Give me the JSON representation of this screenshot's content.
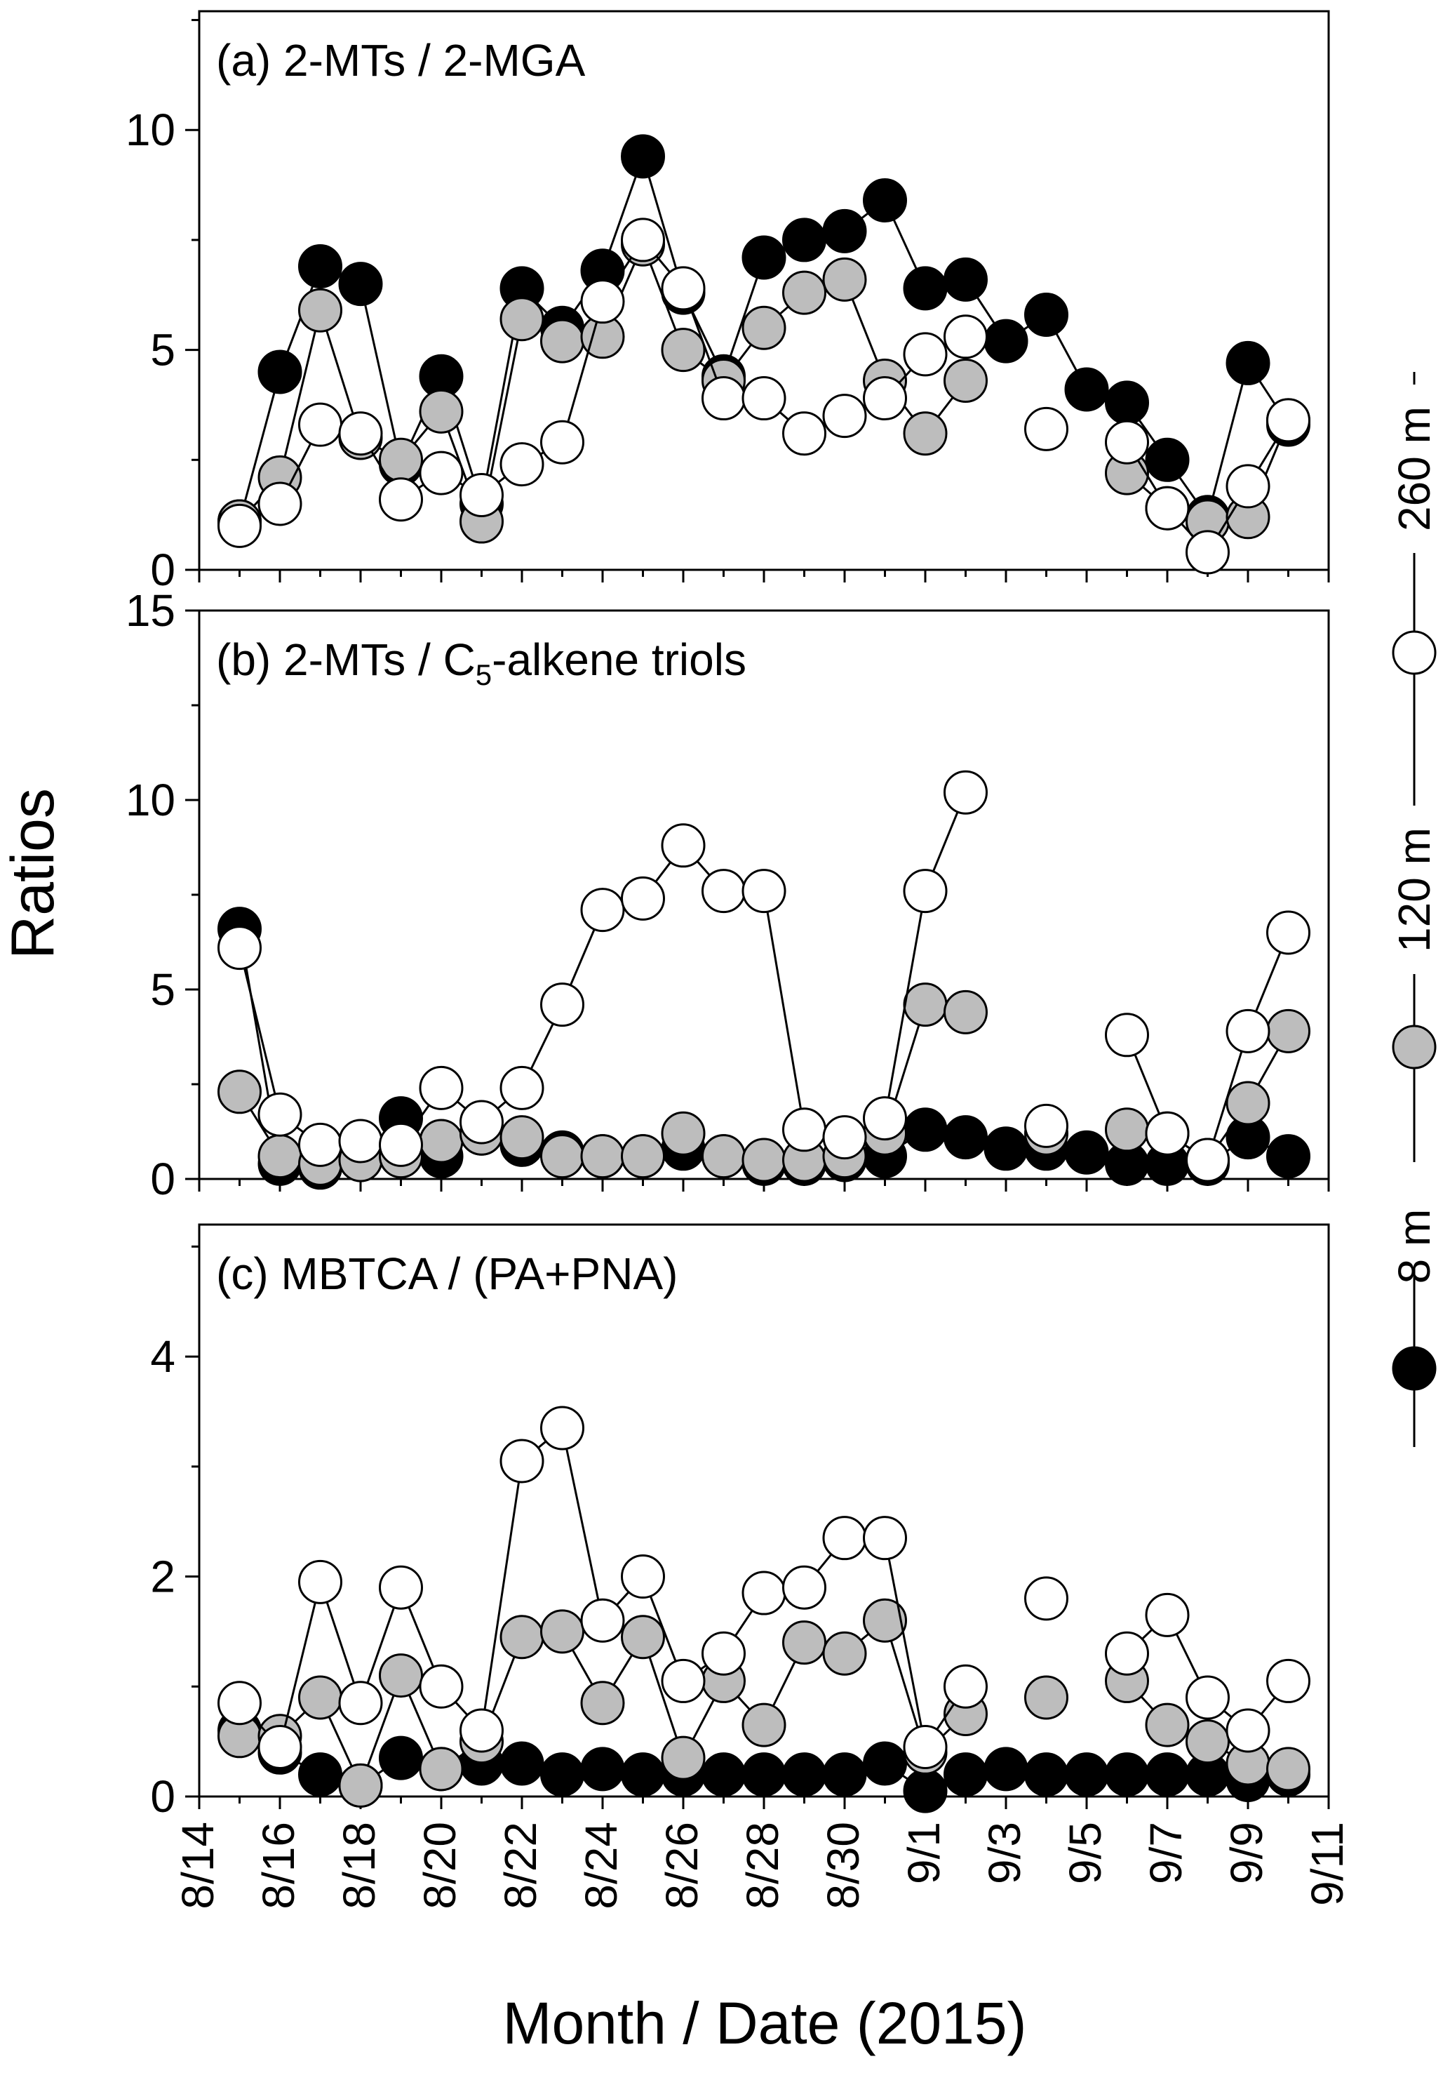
{
  "colors": {
    "8 m": "#000000",
    "120 m": "#bdbdbd",
    "260 m": "#ffffff",
    "stroke": "#000000"
  },
  "figure": {
    "ylabel": "Ratios",
    "xlabel": "Month / Date (2015)",
    "legend": {
      "labels": [
        "8 m",
        "120 m",
        "260 m"
      ],
      "placement": "right, vertical"
    }
  },
  "chart_data": [
    {
      "type": "scatter",
      "panel": "a",
      "title": "(a) 2-MTs / 2-MGA",
      "x_type": "date",
      "xlim": [
        "2015-08-14",
        "2015-09-11"
      ],
      "ylim": [
        0,
        12.7
      ],
      "yticks": [
        0,
        5,
        10
      ],
      "series": [
        {
          "name": "8 m",
          "x": [
            "2015-08-15",
            "2015-08-16",
            "2015-08-17",
            "2015-08-18",
            "2015-08-19",
            "2015-08-20",
            "2015-08-21",
            "2015-08-22",
            "2015-08-23",
            "2015-08-24",
            "2015-08-25",
            "2015-08-26",
            "2015-08-27",
            "2015-08-28",
            "2015-08-29",
            "2015-08-30",
            "2015-08-31",
            "2015-09-01",
            "2015-09-02",
            "2015-09-03",
            "2015-09-04",
            "2015-09-05",
            "2015-09-06",
            "2015-09-07",
            "2015-09-08",
            "2015-09-09",
            "2015-09-10"
          ],
          "y": [
            1.1,
            4.5,
            6.9,
            6.5,
            2.4,
            4.4,
            1.5,
            6.4,
            5.5,
            6.8,
            9.4,
            6.3,
            4.4,
            7.1,
            7.5,
            7.7,
            8.4,
            6.4,
            6.6,
            5.2,
            5.8,
            4.1,
            3.8,
            2.5,
            1.2,
            4.7,
            3.3
          ]
        },
        {
          "name": "120 m",
          "x": [
            "2015-08-15",
            "2015-08-16",
            "2015-08-17",
            "2015-08-18",
            "2015-08-19",
            "2015-08-20",
            "2015-08-21",
            "2015-08-22",
            "2015-08-23",
            "2015-08-24",
            "2015-08-25",
            "2015-08-26",
            "2015-08-27",
            "2015-08-28",
            "2015-08-29",
            "2015-08-30",
            "2015-08-31",
            "2015-09-01",
            "2015-09-02",
            "2015-09-06",
            "2015-09-07",
            "2015-09-08",
            "2015-09-09",
            "2015-09-10"
          ],
          "y": [
            1.1,
            2.1,
            5.9,
            3.0,
            2.5,
            3.6,
            1.1,
            5.7,
            5.2,
            5.3,
            7.4,
            5.0,
            4.3,
            5.5,
            6.3,
            6.6,
            4.3,
            3.1,
            4.3,
            2.2,
            1.4,
            1.1,
            1.2,
            3.4
          ]
        },
        {
          "name": "260 m",
          "x": [
            "2015-08-15",
            "2015-08-16",
            "2015-08-17",
            "2015-08-18",
            "2015-08-19",
            "2015-08-20",
            "2015-08-21",
            "2015-08-22",
            "2015-08-23",
            "2015-08-24",
            "2015-08-25",
            "2015-08-26",
            "2015-08-27",
            "2015-08-28",
            "2015-08-29",
            "2015-08-30",
            "2015-08-31",
            "2015-09-01",
            "2015-09-02",
            "2015-09-04",
            "2015-09-06",
            "2015-09-07",
            "2015-09-08",
            "2015-09-09",
            "2015-09-10"
          ],
          "y": [
            1.0,
            1.5,
            3.3,
            3.1,
            1.6,
            2.2,
            1.7,
            2.4,
            2.9,
            6.1,
            7.5,
            6.4,
            3.9,
            3.9,
            3.1,
            3.5,
            3.9,
            4.9,
            5.3,
            3.2,
            2.9,
            1.4,
            0.4,
            1.9,
            3.4
          ]
        }
      ]
    },
    {
      "type": "scatter",
      "panel": "b",
      "title": "(b) 2-MTs / C",
      "title_sub": "5",
      "title_tail": "-alkene triols",
      "x_type": "date",
      "xlim": [
        "2015-08-14",
        "2015-09-11"
      ],
      "ylim": [
        0,
        15
      ],
      "yticks": [
        0,
        5,
        10,
        15
      ],
      "series": [
        {
          "name": "8 m",
          "x": [
            "2015-08-15",
            "2015-08-16",
            "2015-08-17",
            "2015-08-18",
            "2015-08-19",
            "2015-08-20",
            "2015-08-21",
            "2015-08-22",
            "2015-08-23",
            "2015-08-24",
            "2015-08-25",
            "2015-08-26",
            "2015-08-27",
            "2015-08-28",
            "2015-08-29",
            "2015-08-30",
            "2015-08-31",
            "2015-09-01",
            "2015-09-02",
            "2015-09-03",
            "2015-09-04",
            "2015-09-05",
            "2015-09-06",
            "2015-09-07",
            "2015-09-08",
            "2015-09-09",
            "2015-09-10"
          ],
          "y": [
            6.6,
            0.4,
            0.3,
            0.5,
            1.6,
            0.6,
            1.2,
            0.9,
            0.7,
            0.6,
            0.6,
            0.8,
            0.6,
            0.4,
            0.4,
            0.5,
            0.6,
            1.3,
            1.1,
            0.8,
            0.8,
            0.7,
            0.4,
            0.4,
            0.4,
            1.1,
            0.6
          ]
        },
        {
          "name": "120 m",
          "x": [
            "2015-08-15",
            "2015-08-16",
            "2015-08-17",
            "2015-08-18",
            "2015-08-19",
            "2015-08-20",
            "2015-08-21",
            "2015-08-22",
            "2015-08-23",
            "2015-08-24",
            "2015-08-25",
            "2015-08-26",
            "2015-08-27",
            "2015-08-28",
            "2015-08-29",
            "2015-08-30",
            "2015-08-31",
            "2015-09-01",
            "2015-09-02",
            "2015-09-04",
            "2015-09-06",
            "2015-09-07",
            "2015-09-08",
            "2015-09-09",
            "2015-09-10"
          ],
          "y": [
            2.3,
            0.6,
            0.4,
            0.5,
            0.6,
            1.0,
            1.2,
            1.1,
            0.6,
            0.6,
            0.6,
            1.2,
            0.6,
            0.5,
            0.5,
            0.6,
            1.2,
            4.6,
            4.4,
            1.2,
            1.3,
            1.2,
            0.5,
            2.0,
            3.9
          ]
        },
        {
          "name": "260 m",
          "x": [
            "2015-08-15",
            "2015-08-16",
            "2015-08-17",
            "2015-08-18",
            "2015-08-19",
            "2015-08-20",
            "2015-08-21",
            "2015-08-22",
            "2015-08-23",
            "2015-08-24",
            "2015-08-25",
            "2015-08-26",
            "2015-08-27",
            "2015-08-28",
            "2015-08-29",
            "2015-08-30",
            "2015-08-31",
            "2015-09-01",
            "2015-09-02",
            "2015-09-04",
            "2015-09-06",
            "2015-09-07",
            "2015-09-08",
            "2015-09-09",
            "2015-09-10"
          ],
          "y": [
            6.1,
            1.7,
            0.9,
            1.0,
            0.9,
            2.4,
            1.5,
            2.4,
            4.6,
            7.1,
            7.4,
            8.8,
            7.6,
            7.6,
            1.3,
            1.1,
            1.6,
            7.6,
            10.2,
            1.4,
            3.8,
            1.2,
            0.5,
            3.9,
            6.5
          ]
        }
      ]
    },
    {
      "type": "scatter",
      "panel": "c",
      "title": "(c) MBTCA / (PA+PNA)",
      "x_type": "date",
      "xlim": [
        "2015-08-14",
        "2015-09-11"
      ],
      "ylim": [
        0,
        5.2
      ],
      "yticks": [
        0,
        2,
        4
      ],
      "xtick_labels": [
        "8/14",
        "8/16",
        "8/18",
        "8/20",
        "8/22",
        "8/24",
        "8/26",
        "8/28",
        "8/30",
        "9/1",
        "9/3",
        "9/5",
        "9/7",
        "9/9",
        "9/11"
      ],
      "series": [
        {
          "name": "8 m",
          "x": [
            "2015-08-15",
            "2015-08-16",
            "2015-08-17",
            "2015-08-18",
            "2015-08-19",
            "2015-08-20",
            "2015-08-21",
            "2015-08-22",
            "2015-08-23",
            "2015-08-24",
            "2015-08-25",
            "2015-08-26",
            "2015-08-27",
            "2015-08-28",
            "2015-08-29",
            "2015-08-30",
            "2015-08-31",
            "2015-09-01",
            "2015-09-02",
            "2015-09-03",
            "2015-09-04",
            "2015-09-05",
            "2015-09-06",
            "2015-09-07",
            "2015-09-08",
            "2015-09-09",
            "2015-09-10"
          ],
          "y": [
            0.6,
            0.4,
            0.2,
            0.1,
            0.35,
            0.25,
            0.3,
            0.3,
            0.2,
            0.25,
            0.2,
            0.2,
            0.2,
            0.2,
            0.2,
            0.2,
            0.3,
            0.05,
            0.2,
            0.25,
            0.2,
            0.2,
            0.2,
            0.2,
            0.2,
            0.15,
            0.2
          ]
        },
        {
          "name": "120 m",
          "x": [
            "2015-08-15",
            "2015-08-16",
            "2015-08-17",
            "2015-08-18",
            "2015-08-19",
            "2015-08-20",
            "2015-08-21",
            "2015-08-22",
            "2015-08-23",
            "2015-08-24",
            "2015-08-25",
            "2015-08-26",
            "2015-08-27",
            "2015-08-28",
            "2015-08-29",
            "2015-08-30",
            "2015-08-31",
            "2015-09-01",
            "2015-09-02",
            "2015-09-04",
            "2015-09-06",
            "2015-09-07",
            "2015-09-08",
            "2015-09-09",
            "2015-09-10"
          ],
          "y": [
            0.55,
            0.55,
            0.9,
            0.1,
            1.1,
            0.25,
            0.5,
            1.45,
            1.5,
            0.85,
            1.45,
            0.35,
            1.05,
            0.65,
            1.4,
            1.3,
            1.6,
            0.4,
            0.75,
            0.9,
            1.05,
            0.65,
            0.5,
            0.3,
            0.25
          ]
        },
        {
          "name": "260 m",
          "x": [
            "2015-08-15",
            "2015-08-16",
            "2015-08-17",
            "2015-08-18",
            "2015-08-19",
            "2015-08-20",
            "2015-08-21",
            "2015-08-22",
            "2015-08-23",
            "2015-08-24",
            "2015-08-25",
            "2015-08-26",
            "2015-08-27",
            "2015-08-28",
            "2015-08-29",
            "2015-08-30",
            "2015-08-31",
            "2015-09-01",
            "2015-09-02",
            "2015-09-04",
            "2015-09-06",
            "2015-09-07",
            "2015-09-08",
            "2015-09-09",
            "2015-09-10"
          ],
          "y": [
            0.85,
            0.45,
            1.95,
            0.85,
            1.9,
            1.0,
            0.6,
            3.05,
            3.35,
            1.6,
            2.0,
            1.05,
            1.3,
            1.85,
            1.9,
            2.35,
            2.35,
            0.45,
            1.0,
            1.8,
            1.3,
            1.65,
            0.9,
            0.6,
            1.05
          ]
        }
      ]
    }
  ]
}
